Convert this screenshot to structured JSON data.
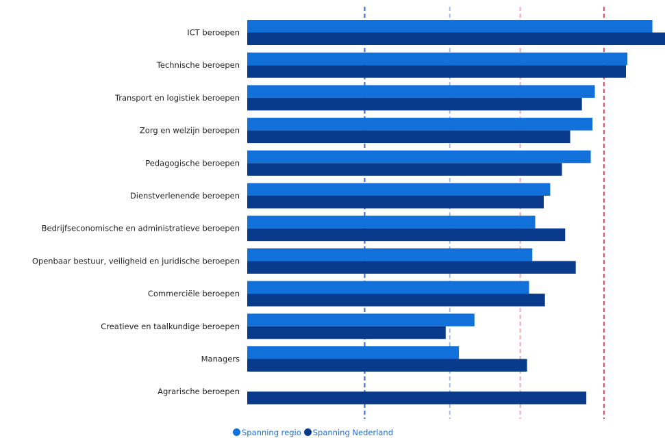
{
  "chart_data": {
    "type": "bar",
    "orientation": "horizontal",
    "categories": [
      "ICT beroepen",
      "Technische beroepen",
      "Transport en logistiek beroepen",
      "Zorg en welzijn beroepen",
      "Pedagogische beroepen",
      "Dienstverlenende beroepen",
      "Bedrijfseconomische en administratieve beroepen",
      "Openbaar bestuur, veiligheid en juridische beroepen",
      "Commerciële beroepen",
      "Creatieve en taalkundige beroepen",
      "Managers",
      "Agrarische beroepen"
    ],
    "series": [
      {
        "name": "Spanning regio",
        "color": "#1170d9",
        "values": [
          1.38,
          1.295,
          1.184,
          1.176,
          1.17,
          1.032,
          0.981,
          0.971,
          0.96,
          0.774,
          0.721,
          null
        ]
      },
      {
        "name": "Spanning Nederland",
        "color": "#0a3a8c",
        "values": [
          1.423,
          1.29,
          1.14,
          1.1,
          1.072,
          1.01,
          1.083,
          1.119,
          1.014,
          0.676,
          0.953,
          1.155
        ]
      }
    ],
    "xlim": [
      0,
      1.423
    ],
    "reference_lines": [
      {
        "value": 0.4,
        "color": "#3a6bc4"
      },
      {
        "value": 0.69,
        "color": "#a9b9e8"
      },
      {
        "value": 0.93,
        "color": "#f2a7b4"
      },
      {
        "value": 1.215,
        "color": "#e0455d"
      }
    ],
    "legend_position": "bottom"
  }
}
